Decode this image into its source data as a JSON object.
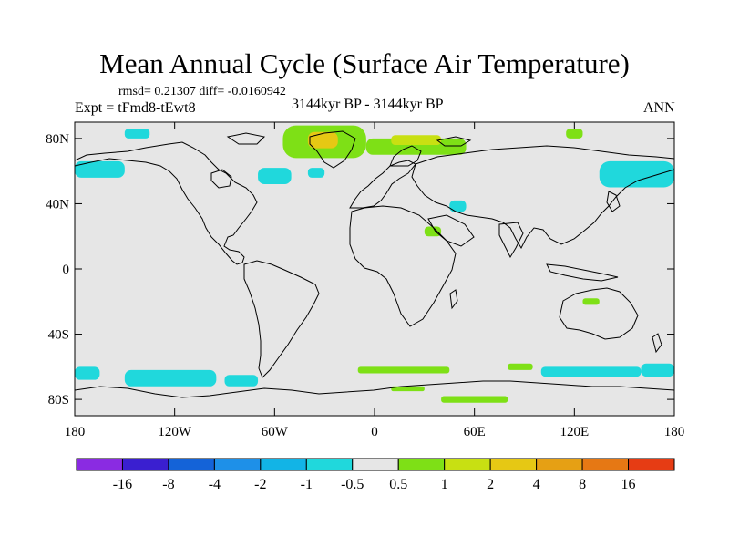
{
  "title": "Mean Annual Cycle (Surface Air Temperature)",
  "stats": "rmsd= 0.21307 diff= -0.0160942",
  "expt": "Expt = tFmd8-tEwt8",
  "period": "3144kyr BP - 3144kyr BP",
  "season": "ANN",
  "chart_data": {
    "type": "heatmap",
    "projection": "cylindrical-equidistant world map",
    "field": "Surface Air Temperature difference (annual mean)",
    "xlim": [
      -180,
      180
    ],
    "ylim": [
      -90,
      90
    ],
    "x_ticks": [
      {
        "value": -180,
        "label": "180"
      },
      {
        "value": -120,
        "label": "120W"
      },
      {
        "value": -60,
        "label": "60W"
      },
      {
        "value": 0,
        "label": "0"
      },
      {
        "value": 60,
        "label": "60E"
      },
      {
        "value": 120,
        "label": "120E"
      },
      {
        "value": 180,
        "label": "180"
      }
    ],
    "y_ticks": [
      {
        "value": 80,
        "label": "80N"
      },
      {
        "value": 40,
        "label": "40N"
      },
      {
        "value": 0,
        "label": "0"
      },
      {
        "value": -40,
        "label": "40S"
      },
      {
        "value": -80,
        "label": "80S"
      }
    ],
    "background_color": "#e6e6e6",
    "colorbar": {
      "colors": [
        "#8a2be2",
        "#3a1fd0",
        "#1463d8",
        "#1e90e8",
        "#12b4e6",
        "#20d8dc",
        "#e6e6e6",
        "#7ee016",
        "#c8e012",
        "#e6c814",
        "#e6a014",
        "#e67814",
        "#e63c14"
      ],
      "labels": [
        "-16",
        "-8",
        "-4",
        "-2",
        "-1",
        "-0.5",
        "0.5",
        "1",
        "2",
        "4",
        "8",
        "16"
      ]
    },
    "regions": [
      {
        "name": "greenland",
        "color": "#7ee016",
        "lon": [
          -55,
          -5
        ],
        "lat": [
          68,
          88
        ]
      },
      {
        "name": "greenland-core",
        "color": "#e6c814",
        "lon": [
          -40,
          -22
        ],
        "lat": [
          74,
          84
        ]
      },
      {
        "name": "barents-arctic",
        "color": "#7ee016",
        "lon": [
          -5,
          55
        ],
        "lat": [
          70,
          80
        ]
      },
      {
        "name": "arctic-north",
        "color": "#c8e012",
        "lon": [
          10,
          40
        ],
        "lat": [
          76,
          82
        ]
      },
      {
        "name": "pacific-north",
        "color": "#20d8dc",
        "lon": [
          -180,
          -150
        ],
        "lat": [
          56,
          66
        ]
      },
      {
        "name": "labrador-sea",
        "color": "#20d8dc",
        "lon": [
          -70,
          -50
        ],
        "lat": [
          52,
          62
        ]
      },
      {
        "name": "north-atlantic",
        "color": "#20d8dc",
        "lon": [
          -40,
          -30
        ],
        "lat": [
          56,
          62
        ]
      },
      {
        "name": "beaufort",
        "color": "#20d8dc",
        "lon": [
          -150,
          -135
        ],
        "lat": [
          80,
          86
        ]
      },
      {
        "name": "central-asia",
        "color": "#20d8dc",
        "lon": [
          45,
          55
        ],
        "lat": [
          35,
          42
        ]
      },
      {
        "name": "siberia-east",
        "color": "#20d8dc",
        "lon": [
          135,
          180
        ],
        "lat": [
          50,
          66
        ]
      },
      {
        "name": "siberia-north",
        "color": "#7ee016",
        "lon": [
          115,
          125
        ],
        "lat": [
          80,
          86
        ]
      },
      {
        "name": "arabian",
        "color": "#7ee016",
        "lon": [
          30,
          40
        ],
        "lat": [
          20,
          26
        ]
      },
      {
        "name": "australia",
        "color": "#7ee016",
        "lon": [
          125,
          135
        ],
        "lat": [
          -22,
          -18
        ]
      },
      {
        "name": "southern-pacific",
        "color": "#20d8dc",
        "lon": [
          -180,
          -165
        ],
        "lat": [
          -68,
          -60
        ]
      },
      {
        "name": "ross-sea",
        "color": "#20d8dc",
        "lon": [
          -150,
          -95
        ],
        "lat": [
          -72,
          -62
        ]
      },
      {
        "name": "amundsen",
        "color": "#20d8dc",
        "lon": [
          -90,
          -70
        ],
        "lat": [
          -72,
          -65
        ]
      },
      {
        "name": "weddell-east",
        "color": "#7ee016",
        "lon": [
          -10,
          45
        ],
        "lat": [
          -64,
          -60
        ]
      },
      {
        "name": "southern-indian",
        "color": "#7ee016",
        "lon": [
          80,
          95
        ],
        "lat": [
          -62,
          -58
        ]
      },
      {
        "name": "southern-indian-2",
        "color": "#20d8dc",
        "lon": [
          100,
          160
        ],
        "lat": [
          -66,
          -60
        ]
      },
      {
        "name": "southern-east",
        "color": "#20d8dc",
        "lon": [
          160,
          180
        ],
        "lat": [
          -66,
          -58
        ]
      },
      {
        "name": "weddell-south",
        "color": "#7ee016",
        "lon": [
          10,
          30
        ],
        "lat": [
          -75,
          -72
        ]
      },
      {
        "name": "east-antarctic-coast",
        "color": "#7ee016",
        "lon": [
          40,
          80
        ],
        "lat": [
          -82,
          -78
        ]
      }
    ]
  }
}
